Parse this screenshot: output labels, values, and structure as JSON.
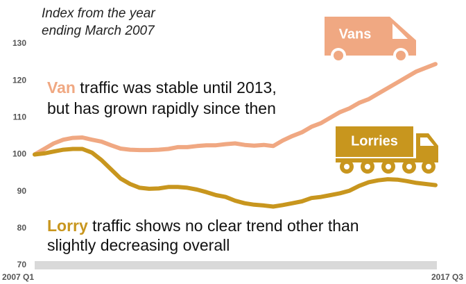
{
  "chart_data": {
    "type": "line",
    "subtitle": [
      "Index from the year",
      "ending March 2007"
    ],
    "categories": [
      "2007 Q1",
      null,
      null,
      null,
      null,
      null,
      null,
      null,
      null,
      null,
      null,
      null,
      null,
      null,
      null,
      null,
      null,
      null,
      null,
      null,
      null,
      null,
      null,
      null,
      null,
      null,
      null,
      null,
      null,
      null,
      null,
      null,
      null,
      null,
      null,
      null,
      null,
      null,
      null,
      null,
      null,
      null,
      "2017 Q3"
    ],
    "series": [
      {
        "name": "Vans",
        "color": "#f0a882",
        "values": [
          100,
          101.5,
          103,
          104,
          104.5,
          104.6,
          104,
          103.5,
          102.5,
          101.6,
          101.3,
          101.2,
          101.2,
          101.3,
          101.5,
          102,
          102,
          102.3,
          102.5,
          102.5,
          102.8,
          103,
          102.6,
          102.4,
          102.6,
          102.3,
          103.8,
          105,
          106,
          107.5,
          108.5,
          110,
          111.5,
          112.5,
          114,
          115,
          116.5,
          118,
          119.5,
          121,
          122.5,
          123.5,
          124.5
        ]
      },
      {
        "name": "Lorries",
        "color": "#c8961e",
        "values": [
          100,
          100.3,
          100.8,
          101.3,
          101.5,
          101.5,
          100.5,
          98.5,
          96,
          93.5,
          92,
          91,
          90.7,
          90.8,
          91.2,
          91.2,
          91,
          90.5,
          89.8,
          89,
          88.5,
          87.5,
          86.8,
          86.4,
          86.2,
          85.9,
          86.3,
          86.8,
          87.3,
          88.2,
          88.5,
          89,
          89.5,
          90.2,
          91.5,
          92.5,
          93,
          93.3,
          93.2,
          92.8,
          92.3,
          92,
          91.7
        ]
      }
    ],
    "annotations": [
      {
        "lead": "Van",
        "line1": " traffic was stable until 2013,",
        "line2": "but has grown rapidly since then"
      },
      {
        "lead": "Lorry",
        "line1": " traffic shows no clear trend other than",
        "line2": "slightly decreasing overall"
      }
    ],
    "ylim": [
      70,
      130
    ],
    "yticks": [
      70,
      80,
      90,
      100,
      110,
      120,
      130
    ],
    "grid": false
  }
}
